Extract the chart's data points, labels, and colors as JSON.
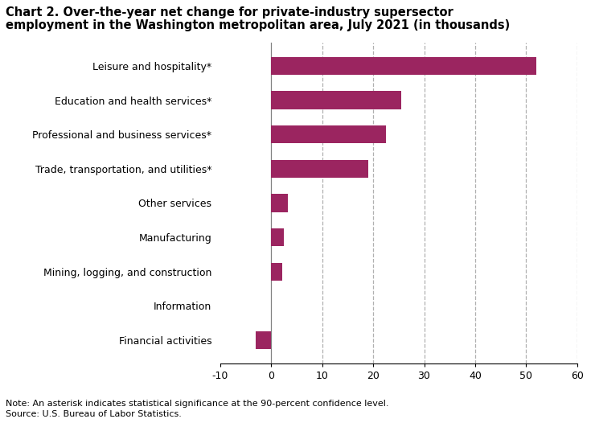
{
  "title_line1": "Chart 2. Over-the-year net change for private-industry supersector",
  "title_line2": "employment in the Washington metropolitan area, July 2021 (in thousands)",
  "categories": [
    "Financial activities",
    "Information",
    "Mining, logging, and construction",
    "Manufacturing",
    "Other services",
    "Trade, transportation, and utilities*",
    "Professional and business services*",
    "Education and health services*",
    "Leisure and hospitality*"
  ],
  "values": [
    -3.0,
    0.0,
    2.2,
    2.5,
    3.2,
    19.0,
    22.5,
    25.5,
    52.0
  ],
  "bar_color": "#9b2560",
  "xlim": [
    -10,
    60
  ],
  "xticks": [
    -10,
    0,
    10,
    20,
    30,
    40,
    50,
    60
  ],
  "note_line1": "Note: An asterisk indicates statistical significance at the 90-percent confidence level.",
  "note_line2": "Source: U.S. Bureau of Labor Statistics.",
  "grid_color": "#b0b0b0",
  "vline_color": "#808080",
  "background_color": "#ffffff"
}
